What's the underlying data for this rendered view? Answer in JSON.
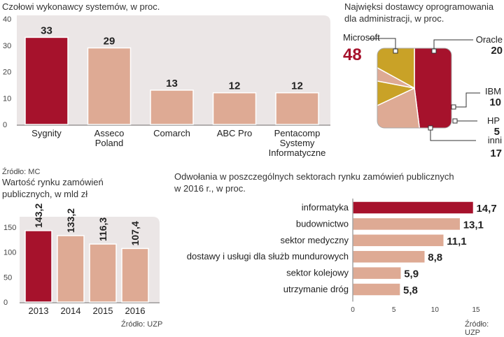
{
  "panel1": {
    "title": "Czołowi wykonawcy systemów, w proc.",
    "source": "Źródło: MC"
  },
  "panel2": {
    "title_line1": "Najwięksi dostawcy oprogramowania",
    "title_line2": "dla administracji, w proc."
  },
  "panel3": {
    "title_line1": "Wartość rynku zamówień",
    "title_line2": "publicznych, w mld zł",
    "source": "Źródło: UZP"
  },
  "panel4": {
    "title_line1": "Odwołania w poszczególnych sektorach rynku zamówień publicznych",
    "title_line2": "w 2016 r., w proc.",
    "source": "Źródło: UZP"
  },
  "colors": {
    "highlight": "#a6122c",
    "bar": "#deaa94",
    "gold": "#c9a227",
    "panel_bg": "#ebe6e6",
    "bar_stroke": "#ffffff"
  },
  "chart_data": [
    {
      "id": "contractors",
      "type": "bar",
      "categories": [
        "Sygnity",
        "Asseco\nPoland",
        "Comarch",
        "ABC Pro",
        "Pentacomp\nSystemy\nInformatyczne"
      ],
      "values": [
        33,
        29,
        13,
        12,
        12
      ],
      "value_labels": [
        "33",
        "29",
        "13",
        "12",
        "12"
      ],
      "highlight_index": 0,
      "ylim": [
        0,
        40
      ],
      "yticks": [
        0,
        10,
        20,
        30,
        40
      ],
      "grid": false
    },
    {
      "id": "suppliers",
      "type": "pie",
      "categories": [
        "Microsoft",
        "Oracle",
        "IBM",
        "HP",
        "inni"
      ],
      "values": [
        48,
        20,
        10,
        5,
        17
      ],
      "value_labels": [
        "48",
        "20",
        "10",
        "5",
        "17"
      ],
      "slice_colors": [
        "#a6122c",
        "#deaa94",
        "#c9a227",
        "#deaa94",
        "#c9a227"
      ]
    },
    {
      "id": "market_value",
      "type": "bar",
      "categories": [
        "2013",
        "2014",
        "2015",
        "2016"
      ],
      "values": [
        143.2,
        133.2,
        116.3,
        107.4
      ],
      "value_labels": [
        "143,2",
        "133,2",
        "116,3",
        "107,4"
      ],
      "highlight_index": 0,
      "ylim": [
        0,
        160
      ],
      "yticks": [
        0,
        50,
        100,
        150
      ],
      "grid": false
    },
    {
      "id": "appeals",
      "type": "bar",
      "orientation": "horizontal",
      "categories": [
        "informatyka",
        "budownictwo",
        "sektor medyczny",
        "dostawy i usługi dla służb mundurowych",
        "sektor kolejowy",
        "utrzymanie dróg"
      ],
      "values": [
        14.7,
        13.1,
        11.1,
        8.8,
        5.9,
        5.8
      ],
      "value_labels": [
        "14,7",
        "13,1",
        "11,1",
        "8,8",
        "5,9",
        "5,8"
      ],
      "highlight_index": 0,
      "xlim": [
        0,
        15
      ],
      "xticks": [
        0,
        5,
        10,
        15
      ],
      "grid": false
    }
  ]
}
